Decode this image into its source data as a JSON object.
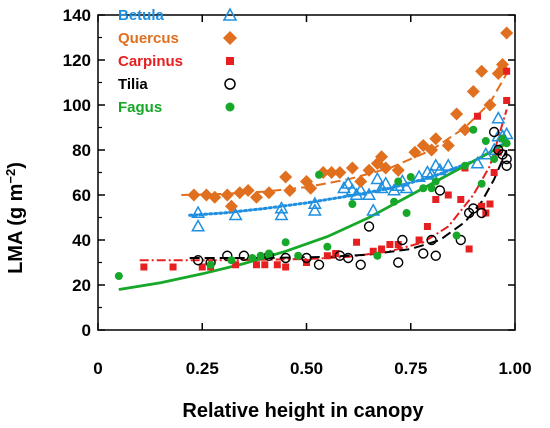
{
  "chart_data": {
    "type": "scatter",
    "xlabel": "Relative height in canopy",
    "ylabel": "LMA (g m",
    "ylabel_sup": "−2",
    "ylabel_close": ")",
    "xlim": [
      0,
      1.0
    ],
    "ylim": [
      0,
      140
    ],
    "x_ticks": [
      "0",
      "0.25",
      "0.50",
      "0.75",
      "1.00"
    ],
    "y_ticks": [
      "0",
      "20",
      "40",
      "60",
      "80",
      "100",
      "120",
      "140"
    ],
    "grid": false,
    "legend_position": "top-left",
    "series": [
      {
        "name": "Betula",
        "color": "#1f8fe0",
        "marker": "open-triangle",
        "fit_style": "dotted",
        "points": [
          [
            0.24,
            46
          ],
          [
            0.24,
            52
          ],
          [
            0.33,
            51
          ],
          [
            0.44,
            51
          ],
          [
            0.44,
            54
          ],
          [
            0.52,
            53
          ],
          [
            0.52,
            56
          ],
          [
            0.59,
            63
          ],
          [
            0.6,
            65
          ],
          [
            0.61,
            62
          ],
          [
            0.62,
            60
          ],
          [
            0.63,
            62
          ],
          [
            0.65,
            60
          ],
          [
            0.66,
            53
          ],
          [
            0.67,
            67
          ],
          [
            0.68,
            63
          ],
          [
            0.69,
            65
          ],
          [
            0.71,
            62
          ],
          [
            0.72,
            64
          ],
          [
            0.73,
            66
          ],
          [
            0.74,
            63
          ],
          [
            0.77,
            68
          ],
          [
            0.79,
            70
          ],
          [
            0.8,
            69
          ],
          [
            0.81,
            73
          ],
          [
            0.82,
            71
          ],
          [
            0.84,
            73
          ],
          [
            0.91,
            74
          ],
          [
            0.93,
            78
          ],
          [
            0.95,
            80
          ],
          [
            0.96,
            86
          ],
          [
            0.96,
            94
          ],
          [
            0.97,
            86
          ],
          [
            0.98,
            87
          ]
        ],
        "fit": [
          [
            0.22,
            51
          ],
          [
            0.3,
            52
          ],
          [
            0.4,
            54
          ],
          [
            0.5,
            56.5
          ],
          [
            0.6,
            59.5
          ],
          [
            0.7,
            63
          ],
          [
            0.8,
            68
          ],
          [
            0.9,
            75
          ],
          [
            0.95,
            80
          ],
          [
            0.98,
            84
          ]
        ]
      },
      {
        "name": "Quercus",
        "color": "#e06f1f",
        "marker": "filled-diamond",
        "fit_style": "dashed",
        "points": [
          [
            0.23,
            60
          ],
          [
            0.26,
            60
          ],
          [
            0.28,
            59
          ],
          [
            0.31,
            60
          ],
          [
            0.32,
            55
          ],
          [
            0.34,
            61
          ],
          [
            0.36,
            62
          ],
          [
            0.38,
            59
          ],
          [
            0.41,
            61
          ],
          [
            0.45,
            68
          ],
          [
            0.46,
            62
          ],
          [
            0.5,
            66
          ],
          [
            0.51,
            63
          ],
          [
            0.54,
            70
          ],
          [
            0.56,
            70
          ],
          [
            0.58,
            70
          ],
          [
            0.61,
            72
          ],
          [
            0.63,
            66
          ],
          [
            0.65,
            71
          ],
          [
            0.67,
            74
          ],
          [
            0.68,
            77
          ],
          [
            0.69,
            72
          ],
          [
            0.72,
            71
          ],
          [
            0.76,
            79
          ],
          [
            0.78,
            82
          ],
          [
            0.8,
            80
          ],
          [
            0.81,
            85
          ],
          [
            0.84,
            82
          ],
          [
            0.86,
            96
          ],
          [
            0.88,
            89
          ],
          [
            0.9,
            106
          ],
          [
            0.92,
            115
          ],
          [
            0.94,
            100
          ],
          [
            0.96,
            114
          ],
          [
            0.97,
            116
          ],
          [
            0.97,
            118
          ],
          [
            0.98,
            132
          ]
        ],
        "fit": [
          [
            0.2,
            60
          ],
          [
            0.3,
            60.5
          ],
          [
            0.4,
            61.5
          ],
          [
            0.5,
            63.5
          ],
          [
            0.6,
            67
          ],
          [
            0.7,
            72
          ],
          [
            0.8,
            80
          ],
          [
            0.88,
            90
          ],
          [
            0.94,
            101
          ],
          [
            0.98,
            114
          ]
        ]
      },
      {
        "name": "Carpinus",
        "color": "#e62020",
        "marker": "filled-square",
        "fit_style": "dash-dot",
        "points": [
          [
            0.11,
            28
          ],
          [
            0.18,
            28
          ],
          [
            0.25,
            28
          ],
          [
            0.27,
            28
          ],
          [
            0.33,
            29
          ],
          [
            0.38,
            29
          ],
          [
            0.4,
            29
          ],
          [
            0.43,
            29
          ],
          [
            0.45,
            28
          ],
          [
            0.5,
            30
          ],
          [
            0.55,
            33
          ],
          [
            0.57,
            34
          ],
          [
            0.62,
            39
          ],
          [
            0.66,
            35
          ],
          [
            0.68,
            36
          ],
          [
            0.7,
            38
          ],
          [
            0.72,
            38
          ],
          [
            0.77,
            40
          ],
          [
            0.79,
            46
          ],
          [
            0.81,
            58
          ],
          [
            0.84,
            60
          ],
          [
            0.87,
            58
          ],
          [
            0.88,
            72
          ],
          [
            0.89,
            36
          ],
          [
            0.91,
            95
          ],
          [
            0.92,
            55
          ],
          [
            0.93,
            52
          ],
          [
            0.94,
            56
          ],
          [
            0.95,
            70
          ],
          [
            0.96,
            79
          ],
          [
            0.97,
            85
          ],
          [
            0.98,
            102
          ],
          [
            0.98,
            115
          ]
        ],
        "fit": [
          [
            0.1,
            31
          ],
          [
            0.3,
            31
          ],
          [
            0.5,
            31.5
          ],
          [
            0.6,
            32.5
          ],
          [
            0.7,
            35
          ],
          [
            0.78,
            39
          ],
          [
            0.84,
            46
          ],
          [
            0.9,
            60
          ],
          [
            0.94,
            73
          ],
          [
            0.98,
            98
          ]
        ]
      },
      {
        "name": "Tilia",
        "color": "#000000",
        "marker": "open-circle",
        "fit_style": "dashed",
        "points": [
          [
            0.24,
            31
          ],
          [
            0.27,
            30
          ],
          [
            0.31,
            33
          ],
          [
            0.35,
            33
          ],
          [
            0.41,
            33
          ],
          [
            0.45,
            32
          ],
          [
            0.5,
            32
          ],
          [
            0.53,
            29
          ],
          [
            0.58,
            33
          ],
          [
            0.6,
            32
          ],
          [
            0.63,
            29
          ],
          [
            0.65,
            46
          ],
          [
            0.72,
            30
          ],
          [
            0.73,
            40
          ],
          [
            0.78,
            34
          ],
          [
            0.8,
            40
          ],
          [
            0.81,
            33
          ],
          [
            0.82,
            62
          ],
          [
            0.87,
            40
          ],
          [
            0.89,
            52
          ],
          [
            0.9,
            54
          ],
          [
            0.92,
            52
          ],
          [
            0.95,
            88
          ],
          [
            0.96,
            80
          ],
          [
            0.97,
            78
          ],
          [
            0.98,
            73
          ],
          [
            0.98,
            76
          ]
        ],
        "fit": [
          [
            0.22,
            32
          ],
          [
            0.4,
            32
          ],
          [
            0.55,
            32.5
          ],
          [
            0.65,
            33.5
          ],
          [
            0.75,
            36
          ],
          [
            0.82,
            40
          ],
          [
            0.88,
            48
          ],
          [
            0.92,
            57
          ],
          [
            0.95,
            67
          ],
          [
            0.98,
            80
          ]
        ]
      },
      {
        "name": "Fagus",
        "color": "#17a82a",
        "marker": "filled-circle",
        "fit_style": "solid",
        "points": [
          [
            0.05,
            24
          ],
          [
            0.27,
            29
          ],
          [
            0.32,
            31
          ],
          [
            0.37,
            32
          ],
          [
            0.39,
            33
          ],
          [
            0.41,
            34
          ],
          [
            0.45,
            39
          ],
          [
            0.48,
            33
          ],
          [
            0.53,
            69
          ],
          [
            0.55,
            37
          ],
          [
            0.61,
            56
          ],
          [
            0.67,
            33
          ],
          [
            0.71,
            57
          ],
          [
            0.72,
            66
          ],
          [
            0.74,
            52
          ],
          [
            0.75,
            68
          ],
          [
            0.78,
            63
          ],
          [
            0.8,
            63
          ],
          [
            0.81,
            66
          ],
          [
            0.86,
            42
          ],
          [
            0.88,
            73
          ],
          [
            0.9,
            89
          ],
          [
            0.92,
            65
          ],
          [
            0.93,
            84
          ],
          [
            0.95,
            76
          ],
          [
            0.97,
            85
          ],
          [
            0.98,
            83
          ]
        ],
        "fit": [
          [
            0.05,
            18
          ],
          [
            0.15,
            21
          ],
          [
            0.25,
            25
          ],
          [
            0.35,
            29.5
          ],
          [
            0.45,
            35
          ],
          [
            0.55,
            41.5
          ],
          [
            0.65,
            50
          ],
          [
            0.75,
            60
          ],
          [
            0.85,
            70
          ],
          [
            0.92,
            77
          ],
          [
            0.98,
            83
          ]
        ]
      }
    ]
  }
}
